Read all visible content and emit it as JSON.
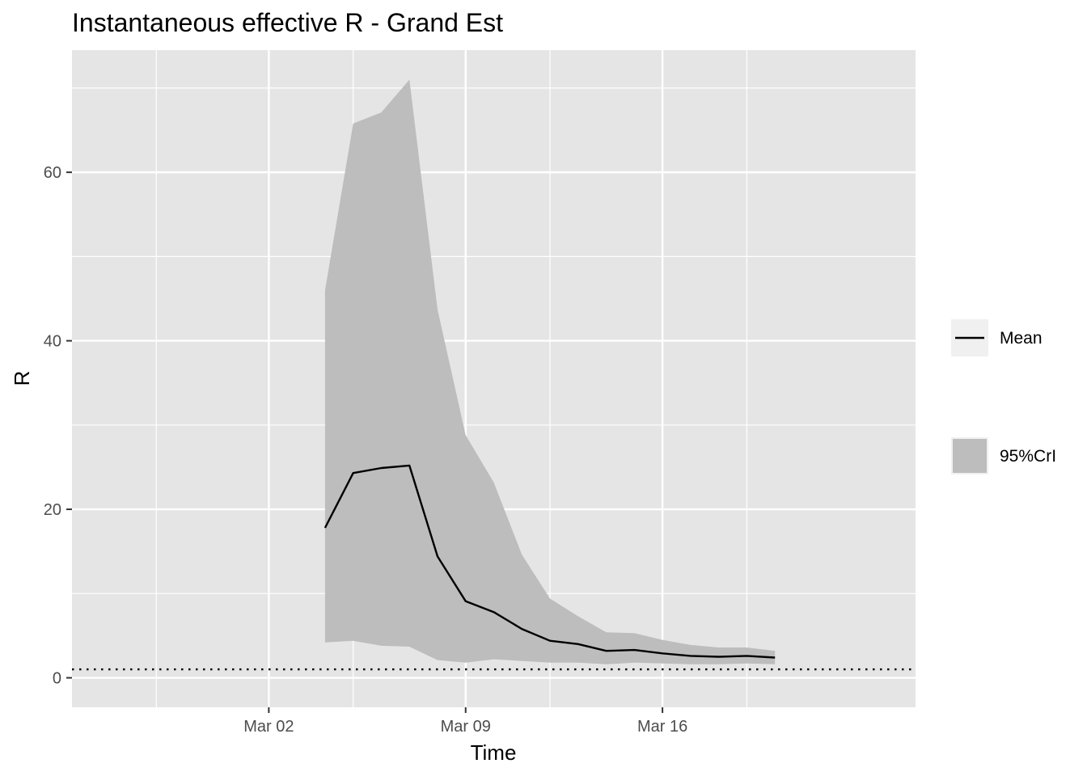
{
  "chart_data": {
    "type": "line",
    "title": "Instantaneous effective R -  Grand Est",
    "xlabel": "Time",
    "ylabel": "R",
    "x_type": "date",
    "xlim": [
      "2020-02-24",
      "2020-03-25"
    ],
    "ylim": [
      -3.5,
      74.5
    ],
    "x_ticks": [
      {
        "value": "2020-03-02",
        "label": "Mar 02"
      },
      {
        "value": "2020-03-09",
        "label": "Mar 09"
      },
      {
        "value": "2020-03-16",
        "label": "Mar 16"
      }
    ],
    "x_minor_gridlines": [
      "2020-02-27",
      "2020-03-05",
      "2020-03-12",
      "2020-03-19"
    ],
    "y_ticks": [
      0,
      20,
      40,
      60
    ],
    "y_minor_gridlines": [
      10,
      30,
      50,
      70
    ],
    "grid": true,
    "reference_line": {
      "y": 1,
      "style": "dotted"
    },
    "series": [
      {
        "name": "Mean",
        "kind": "line",
        "color": "#000000",
        "x": [
          "2020-03-04",
          "2020-03-05",
          "2020-03-06",
          "2020-03-07",
          "2020-03-08",
          "2020-03-09",
          "2020-03-10",
          "2020-03-11",
          "2020-03-12",
          "2020-03-13",
          "2020-03-14",
          "2020-03-15",
          "2020-03-16",
          "2020-03-17",
          "2020-03-18",
          "2020-03-19",
          "2020-03-20"
        ],
        "values": [
          17.8,
          24.3,
          24.9,
          25.2,
          14.4,
          9.1,
          7.8,
          5.8,
          4.4,
          4.0,
          3.2,
          3.3,
          2.9,
          2.6,
          2.5,
          2.6,
          2.4
        ]
      },
      {
        "name": "95%CrI",
        "kind": "ribbon",
        "color": "#bdbdbd",
        "x": [
          "2020-03-04",
          "2020-03-05",
          "2020-03-06",
          "2020-03-07",
          "2020-03-08",
          "2020-03-09",
          "2020-03-10",
          "2020-03-11",
          "2020-03-12",
          "2020-03-13",
          "2020-03-14",
          "2020-03-15",
          "2020-03-16",
          "2020-03-17",
          "2020-03-18",
          "2020-03-19",
          "2020-03-20"
        ],
        "lower": [
          4.2,
          4.4,
          3.8,
          3.7,
          2.1,
          1.8,
          2.2,
          2.0,
          1.8,
          1.8,
          1.6,
          1.8,
          1.7,
          1.6,
          1.6,
          1.7,
          1.6
        ],
        "upper": [
          46.0,
          65.8,
          67.1,
          71.0,
          43.7,
          28.8,
          23.2,
          14.6,
          9.4,
          7.3,
          5.4,
          5.3,
          4.5,
          3.9,
          3.6,
          3.6,
          3.2
        ]
      }
    ],
    "legend": {
      "placement": "right",
      "items": [
        {
          "label": "Mean",
          "kind": "line"
        },
        {
          "label": "95%CrI",
          "kind": "fill"
        }
      ]
    },
    "colors": {
      "panel_background": "#e5e5e5",
      "grid": "#ffffff",
      "ribbon": "#bdbdbd",
      "mean_line": "#000000",
      "legend_key_background": "#f0f0f0"
    }
  }
}
